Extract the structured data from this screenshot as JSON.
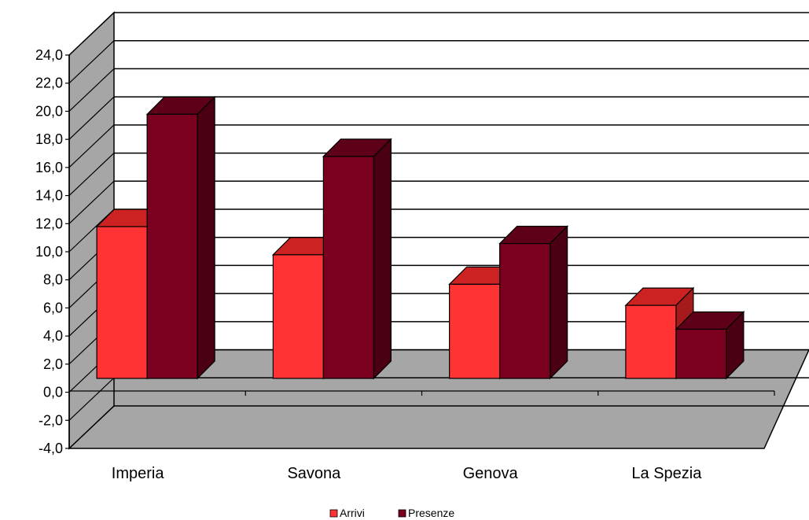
{
  "chart_data": {
    "type": "bar",
    "categories": [
      "Imperia",
      "Savona",
      "Genova",
      "La Spezia"
    ],
    "series": [
      {
        "name": "Arrivi",
        "values": [
          10.8,
          8.8,
          6.7,
          5.2
        ],
        "color": "#ff3333"
      },
      {
        "name": "Presenze",
        "values": [
          18.8,
          15.8,
          9.6,
          3.5
        ],
        "color": "#7b0020"
      }
    ],
    "title": "",
    "xlabel": "",
    "ylabel": "",
    "ylim": [
      -4,
      24
    ],
    "ytick_step": 2,
    "ytick_labels": [
      "-4,0",
      "-2,0",
      "0,0",
      "2,0",
      "4,0",
      "6,0",
      "8,0",
      "10,0",
      "12,0",
      "14,0",
      "16,0",
      "18,0",
      "20,0",
      "22,0",
      "24,0"
    ],
    "grid": true,
    "legend_position": "bottom",
    "colors": {
      "wall": "#ffffff",
      "floor": "#a6a6a6",
      "side_wall": "#a6a6a6",
      "arrivi_top": "#cc2222",
      "presenze_top": "#5e0018",
      "presenze_side": "#4a0012"
    }
  }
}
